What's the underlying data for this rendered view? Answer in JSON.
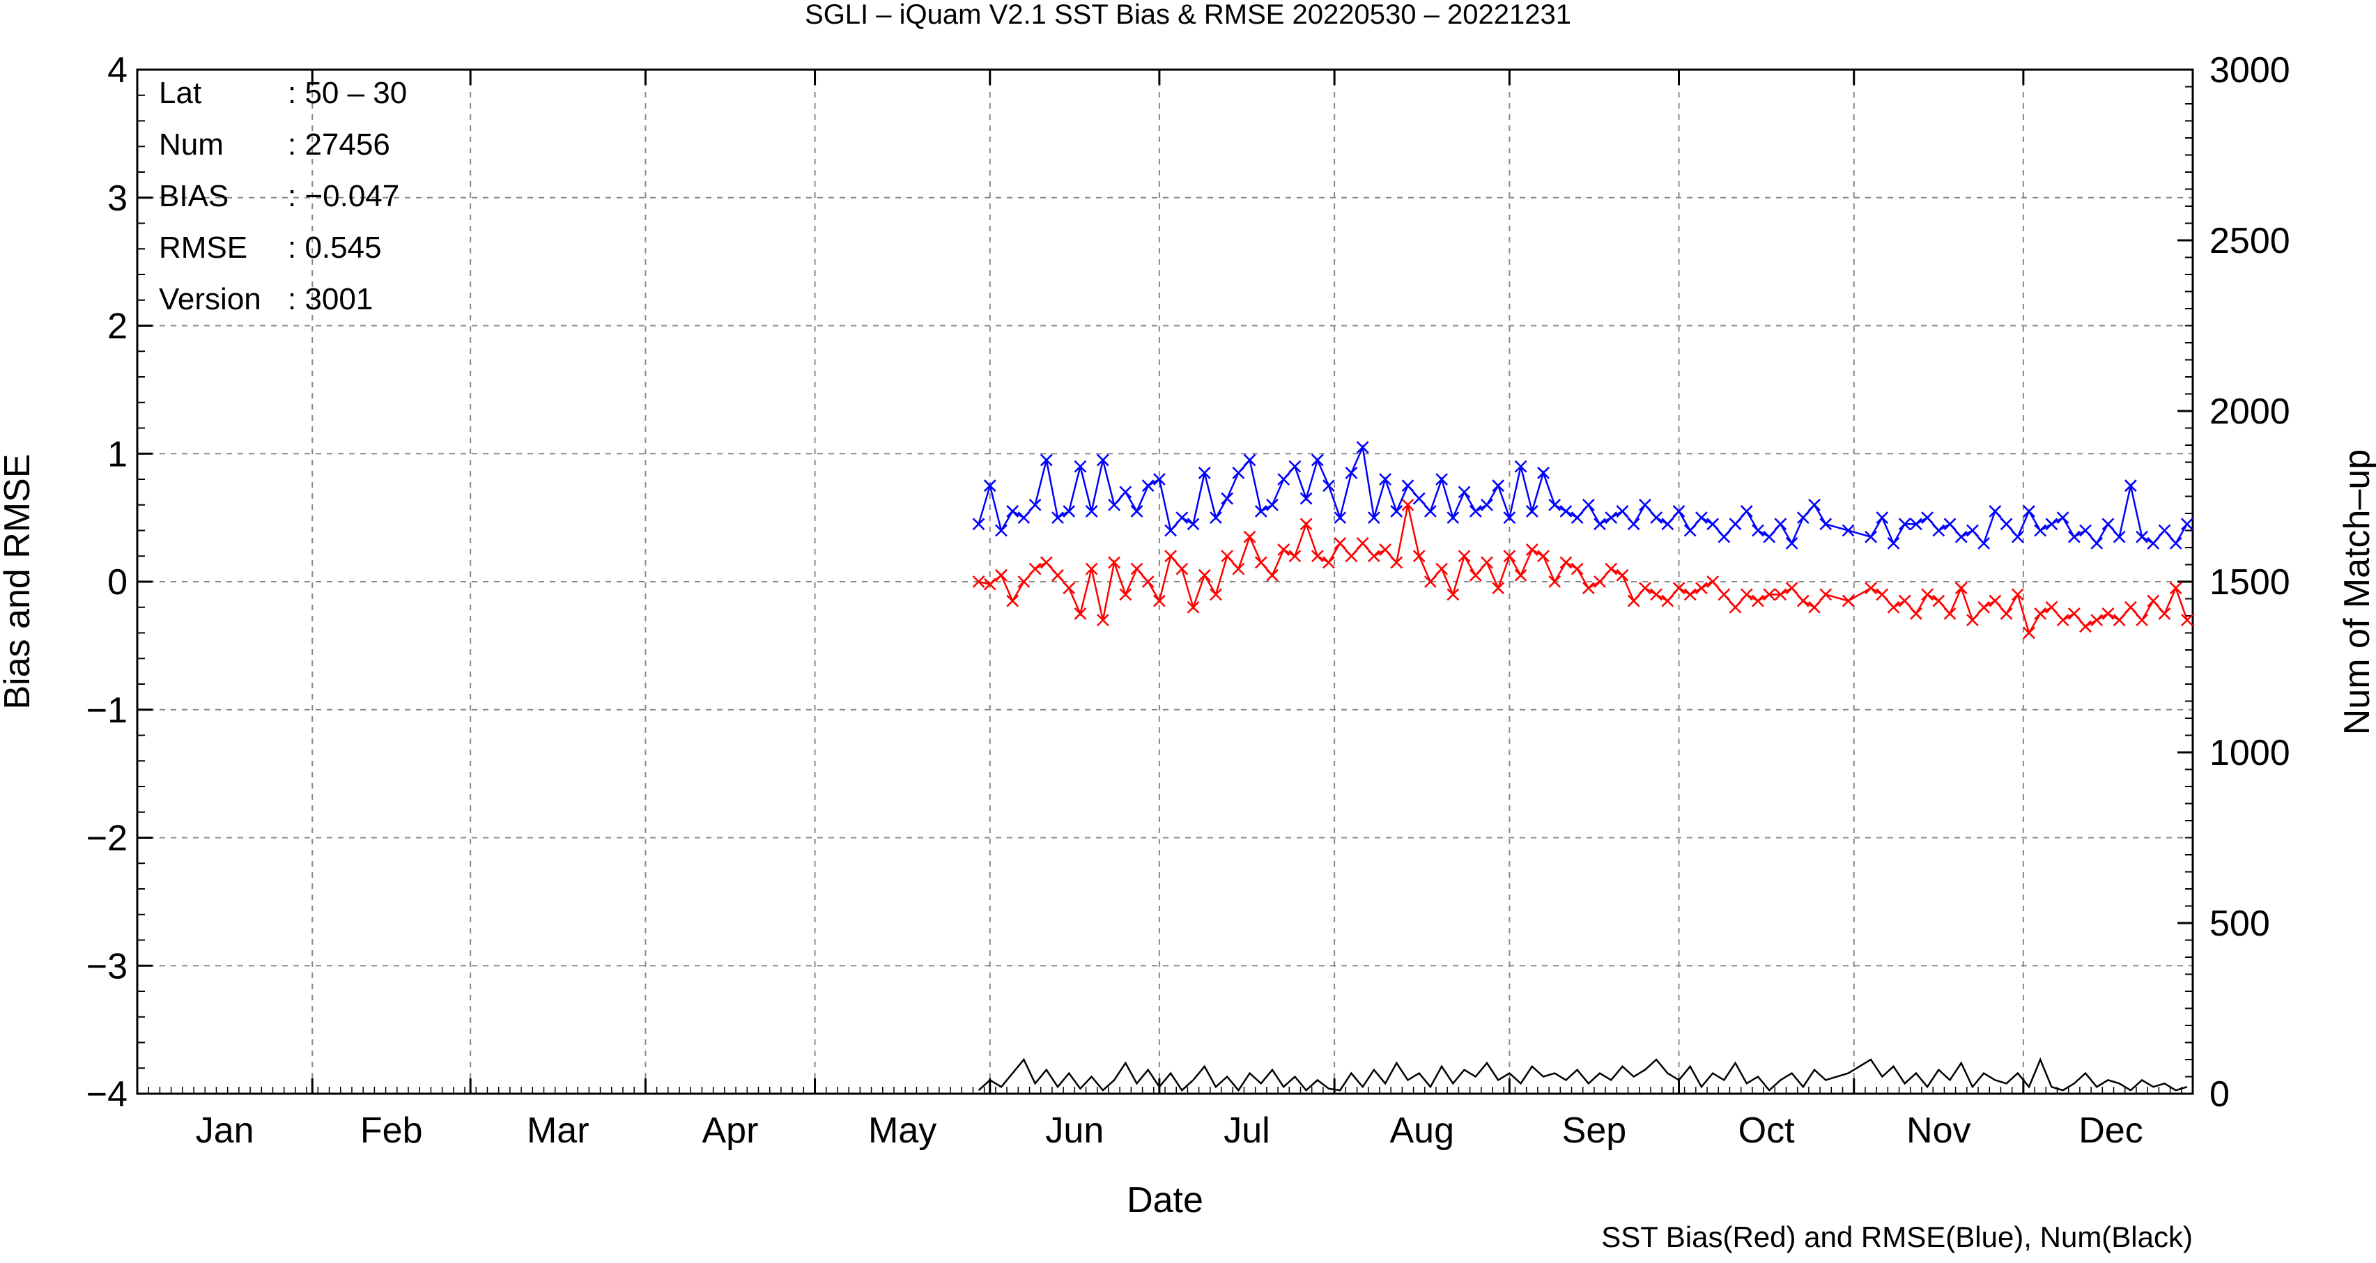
{
  "chart_data": {
    "type": "line",
    "title": "SGLI – iQuam V2.1 SST Bias & RMSE 20220530 – 20221231",
    "xlabel": "Date",
    "ylabel": "Bias and RMSE",
    "ylabel_right": "Num of Match–up",
    "footer": "SST Bias(Red) and RMSE(Blue), Num(Black)",
    "x_range": [
      "2022-01-01",
      "2022-12-31"
    ],
    "x_axis_unit": "day of year 2022",
    "x_ticks": [
      "Jan",
      "Feb",
      "Mar",
      "Apr",
      "May",
      "Jun",
      "Jul",
      "Aug",
      "Sep",
      "Oct",
      "Nov",
      "Dec"
    ],
    "ylim": [
      -4,
      4
    ],
    "y_ticks": [
      "4",
      "3",
      "2",
      "1",
      "0",
      "−1",
      "−2",
      "−3",
      "−4"
    ],
    "ylim_right": [
      0,
      3000
    ],
    "y_ticks_right": [
      "3000",
      "2500",
      "2000",
      "1500",
      "1000",
      "500",
      "0"
    ],
    "grid": true,
    "stats_box": {
      "rows": [
        {
          "label": "Lat",
          "value": ": 50 – 30"
        },
        {
          "label": "Num",
          "value": ": 27456"
        },
        {
          "label": "BIAS",
          "value": ": −0.047"
        },
        {
          "label": "RMSE",
          "value": ": 0.545"
        },
        {
          "label": "Version",
          "value": ": 3001"
        }
      ]
    },
    "series": [
      {
        "color": "#ff0000",
        "axis": "left",
        "marker": "x",
        "x": [
          150,
          152,
          154,
          156,
          158,
          160,
          162,
          164,
          166,
          168,
          170,
          172,
          174,
          176,
          178,
          180,
          182,
          184,
          186,
          188,
          190,
          192,
          194,
          196,
          198,
          200,
          202,
          204,
          206,
          208,
          210,
          212,
          214,
          216,
          218,
          220,
          222,
          224,
          226,
          228,
          230,
          232,
          234,
          236,
          238,
          240,
          242,
          244,
          246,
          248,
          250,
          252,
          254,
          256,
          258,
          260,
          262,
          264,
          266,
          268,
          270,
          272,
          274,
          276,
          278,
          280,
          282,
          284,
          286,
          288,
          290,
          292,
          294,
          296,
          298,
          300,
          304,
          308,
          310,
          312,
          314,
          316,
          318,
          320,
          322,
          324,
          326,
          328,
          330,
          332,
          334,
          336,
          338,
          340,
          342,
          344,
          346,
          348,
          350,
          352,
          354,
          356,
          358,
          360,
          362,
          364
        ],
        "values": [
          0.0,
          -0.02,
          0.05,
          -0.15,
          0.0,
          0.1,
          0.15,
          0.05,
          -0.05,
          -0.25,
          0.1,
          -0.3,
          0.15,
          -0.1,
          0.1,
          0.0,
          -0.15,
          0.2,
          0.1,
          -0.2,
          0.05,
          -0.1,
          0.2,
          0.1,
          0.35,
          0.15,
          0.05,
          0.25,
          0.2,
          0.45,
          0.2,
          0.15,
          0.3,
          0.2,
          0.3,
          0.2,
          0.25,
          0.15,
          0.6,
          0.2,
          0.0,
          0.1,
          -0.1,
          0.2,
          0.05,
          0.15,
          -0.05,
          0.2,
          0.05,
          0.25,
          0.2,
          0.0,
          0.15,
          0.1,
          -0.05,
          0.0,
          0.1,
          0.05,
          -0.15,
          -0.05,
          -0.1,
          -0.15,
          -0.05,
          -0.1,
          -0.05,
          0.0,
          -0.1,
          -0.2,
          -0.1,
          -0.15,
          -0.1,
          -0.1,
          -0.05,
          -0.15,
          -0.2,
          -0.1,
          -0.15,
          -0.05,
          -0.1,
          -0.2,
          -0.15,
          -0.25,
          -0.1,
          -0.15,
          -0.25,
          -0.05,
          -0.3,
          -0.2,
          -0.15,
          -0.25,
          -0.1,
          -0.4,
          -0.25,
          -0.2,
          -0.3,
          -0.25,
          -0.35,
          -0.3,
          -0.25,
          -0.3,
          -0.2,
          -0.3,
          -0.15,
          -0.25,
          -0.05,
          -0.3
        ]
      },
      {
        "color": "#0000ff",
        "axis": "left",
        "marker": "x",
        "x": [
          150,
          152,
          154,
          156,
          158,
          160,
          162,
          164,
          166,
          168,
          170,
          172,
          174,
          176,
          178,
          180,
          182,
          184,
          186,
          188,
          190,
          192,
          194,
          196,
          198,
          200,
          202,
          204,
          206,
          208,
          210,
          212,
          214,
          216,
          218,
          220,
          222,
          224,
          226,
          228,
          230,
          232,
          234,
          236,
          238,
          240,
          242,
          244,
          246,
          248,
          250,
          252,
          254,
          256,
          258,
          260,
          262,
          264,
          266,
          268,
          270,
          272,
          274,
          276,
          278,
          280,
          282,
          284,
          286,
          288,
          290,
          292,
          294,
          296,
          298,
          300,
          304,
          308,
          310,
          312,
          314,
          316,
          318,
          320,
          322,
          324,
          326,
          328,
          330,
          332,
          334,
          336,
          338,
          340,
          342,
          344,
          346,
          348,
          350,
          352,
          354,
          356,
          358,
          360,
          362,
          364
        ],
        "values": [
          0.45,
          0.75,
          0.4,
          0.55,
          0.5,
          0.6,
          0.95,
          0.5,
          0.55,
          0.9,
          0.55,
          0.95,
          0.6,
          0.7,
          0.55,
          0.75,
          0.8,
          0.4,
          0.5,
          0.45,
          0.85,
          0.5,
          0.65,
          0.85,
          0.95,
          0.55,
          0.6,
          0.8,
          0.9,
          0.65,
          0.95,
          0.75,
          0.5,
          0.85,
          1.05,
          0.5,
          0.8,
          0.55,
          0.75,
          0.65,
          0.55,
          0.8,
          0.5,
          0.7,
          0.55,
          0.6,
          0.75,
          0.5,
          0.9,
          0.55,
          0.85,
          0.6,
          0.55,
          0.5,
          0.6,
          0.45,
          0.5,
          0.55,
          0.45,
          0.6,
          0.5,
          0.45,
          0.55,
          0.4,
          0.5,
          0.45,
          0.35,
          0.45,
          0.55,
          0.4,
          0.35,
          0.45,
          0.3,
          0.5,
          0.6,
          0.45,
          0.4,
          0.35,
          0.5,
          0.3,
          0.45,
          0.45,
          0.5,
          0.4,
          0.45,
          0.35,
          0.4,
          0.3,
          0.55,
          0.45,
          0.35,
          0.55,
          0.4,
          0.45,
          0.5,
          0.35,
          0.4,
          0.3,
          0.45,
          0.35,
          0.75,
          0.35,
          0.3,
          0.4,
          0.3,
          0.45
        ]
      },
      {
        "color": "#000000",
        "axis": "right",
        "marker": "none",
        "x": [
          150,
          152,
          154,
          156,
          158,
          160,
          162,
          164,
          166,
          168,
          170,
          172,
          174,
          176,
          178,
          180,
          182,
          184,
          186,
          188,
          190,
          192,
          194,
          196,
          198,
          200,
          202,
          204,
          206,
          208,
          210,
          212,
          214,
          216,
          218,
          220,
          222,
          224,
          226,
          228,
          230,
          232,
          234,
          236,
          238,
          240,
          242,
          244,
          246,
          248,
          250,
          252,
          254,
          256,
          258,
          260,
          262,
          264,
          266,
          268,
          270,
          272,
          274,
          276,
          278,
          280,
          282,
          284,
          286,
          288,
          290,
          292,
          294,
          296,
          298,
          300,
          304,
          308,
          310,
          312,
          314,
          316,
          318,
          320,
          322,
          324,
          326,
          328,
          330,
          332,
          334,
          336,
          338,
          340,
          342,
          344,
          346,
          348,
          350,
          352,
          354,
          356,
          358,
          360,
          362,
          364
        ],
        "values": [
          10,
          40,
          20,
          60,
          100,
          30,
          70,
          20,
          60,
          15,
          50,
          10,
          40,
          90,
          30,
          70,
          20,
          60,
          10,
          40,
          80,
          20,
          50,
          10,
          60,
          30,
          70,
          20,
          50,
          10,
          40,
          15,
          10,
          60,
          20,
          70,
          30,
          90,
          40,
          60,
          20,
          80,
          30,
          70,
          50,
          90,
          40,
          60,
          30,
          80,
          50,
          60,
          40,
          70,
          30,
          60,
          40,
          80,
          50,
          70,
          100,
          60,
          40,
          80,
          20,
          60,
          40,
          90,
          30,
          50,
          10,
          40,
          60,
          20,
          70,
          40,
          60,
          100,
          50,
          80,
          30,
          60,
          20,
          70,
          40,
          90,
          20,
          60,
          40,
          30,
          60,
          20,
          100,
          20,
          10,
          30,
          60,
          20,
          40,
          30,
          10,
          40,
          20,
          30,
          10,
          20
        ]
      }
    ]
  }
}
